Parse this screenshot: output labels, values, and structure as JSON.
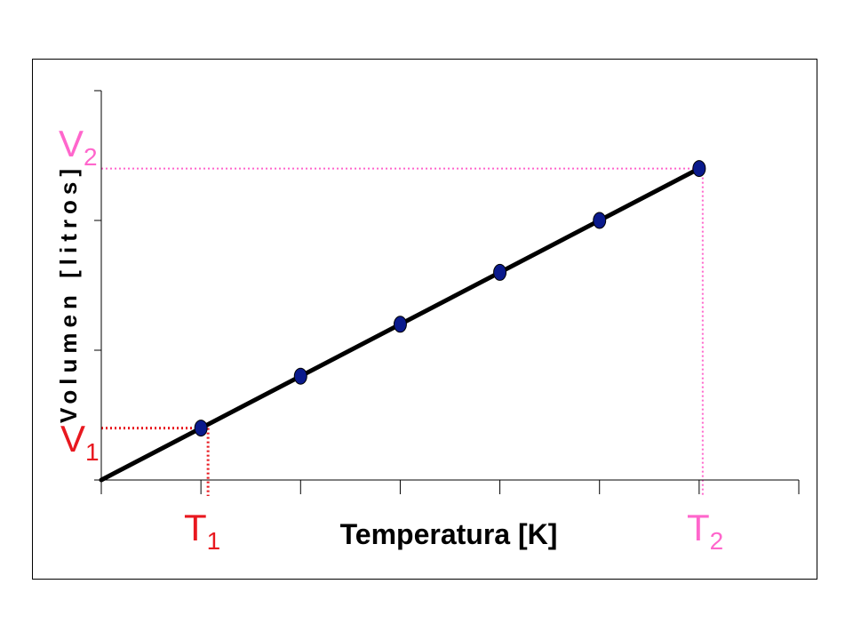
{
  "chart_data": {
    "type": "scatter",
    "title": "",
    "xlabel": "Temperatura [K]",
    "ylabel": "Volumen [litros]",
    "x_ticks_count": 8,
    "y_ticks_count": 4,
    "points": [
      {
        "x": 1,
        "y": 1.0
      },
      {
        "x": 2,
        "y": 2.0
      },
      {
        "x": 3,
        "y": 3.0
      },
      {
        "x": 4,
        "y": 4.0
      },
      {
        "x": 5,
        "y": 5.0
      },
      {
        "x": 6,
        "y": 6.0
      }
    ],
    "fit_line": {
      "from": {
        "x": 0,
        "y": 0
      },
      "to": {
        "x": 6,
        "y": 6.0
      }
    },
    "xlim": [
      0,
      7
    ],
    "ylim": [
      0,
      7.5
    ],
    "annotations": {
      "V1": {
        "base": "V",
        "sub": "1",
        "x": 1,
        "y": 1.0,
        "color": "#e8181f"
      },
      "V2": {
        "base": "V",
        "sub": "2",
        "x": 6,
        "y": 6.0,
        "color": "#ff66cc"
      },
      "T1": {
        "base": "T",
        "sub": "1",
        "x": 1,
        "color": "#e8181f"
      },
      "T2": {
        "base": "T",
        "sub": "2",
        "x": 6,
        "color": "#ff66cc"
      }
    },
    "colors": {
      "point": "#0a1a8c",
      "line": "#000000"
    }
  }
}
